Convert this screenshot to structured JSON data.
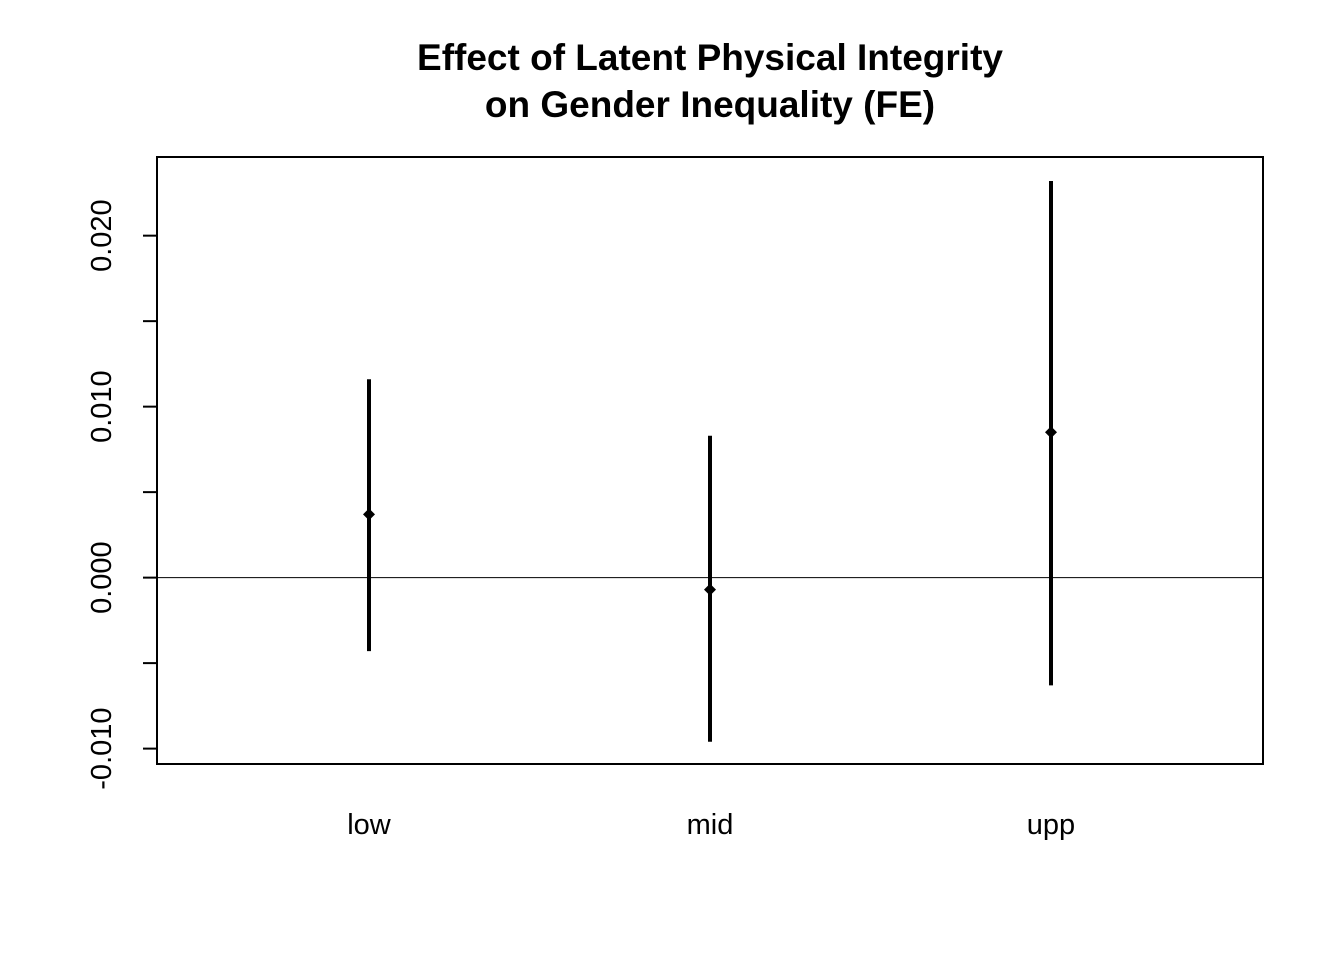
{
  "chart_data": {
    "type": "scatter",
    "title": [
      "Effect of Latent Physical Integrity",
      "on Gender Inequality (FE)"
    ],
    "xlabel": "",
    "ylabel": "",
    "categories": [
      "low",
      "mid",
      "upp"
    ],
    "series": [
      {
        "estimates": [
          0.0037,
          -0.0007,
          0.0085
        ],
        "lower": [
          -0.0043,
          -0.0096,
          -0.0063
        ],
        "upper": [
          0.0116,
          0.0083,
          0.0232
        ]
      }
    ],
    "ylim": [
      -0.0109,
      0.0246
    ],
    "yticks": [
      -0.01,
      -0.005,
      0.0,
      0.005,
      0.01,
      0.015,
      0.02
    ],
    "ytick_labels": [
      "-0.010",
      "",
      "0.000",
      "",
      "0.010",
      "",
      "0.020"
    ],
    "reference_line": 0,
    "grid": false,
    "legend": "none"
  }
}
